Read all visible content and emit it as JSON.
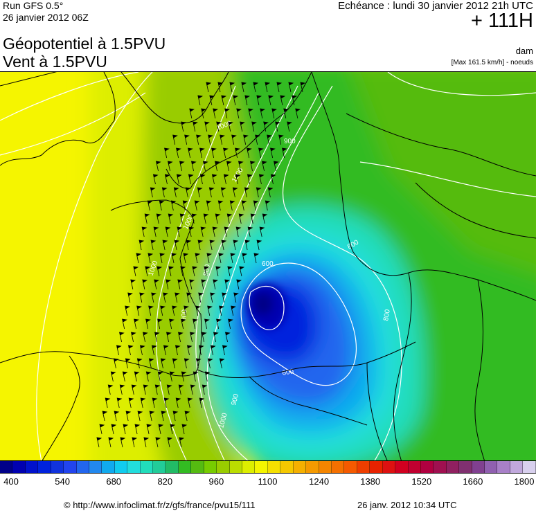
{
  "header": {
    "run_title": "Run GFS 0.5°",
    "run_date": "26 janvier 2012 06Z",
    "title_line1": "Géopotentiel à 1.5PVU",
    "title_line2": "Vent à 1.5PVU",
    "valid_time": "Echéance : lundi 30 janvier 2012 21h UTC",
    "lead_time": "+ 111H",
    "unit": "dam",
    "max_wind": "[Max 161.5 km/h] - noeuds"
  },
  "map": {
    "contour_labels": [
      "1000",
      "900",
      "1000",
      "1000",
      "1000",
      "800",
      "900",
      "600",
      "800",
      "800",
      "600",
      "900",
      "1000"
    ],
    "field_center": "deep low over the Bay of Biscay / western France",
    "colors": {
      "yellow": "#f5f500",
      "green": "#33bb22",
      "cyan": "#22dddd",
      "blue": "#1133dd",
      "navy": "#000088"
    }
  },
  "legend": {
    "colors": [
      "#000088",
      "#0000b0",
      "#0011cc",
      "#0022dd",
      "#1133dd",
      "#2244ee",
      "#2266ee",
      "#2288ee",
      "#11aaee",
      "#11ccee",
      "#22dddd",
      "#22ddbb",
      "#22cc99",
      "#22bb66",
      "#33bb22",
      "#55bb11",
      "#77cc00",
      "#99cc00",
      "#bbdd00",
      "#ddee00",
      "#f5f500",
      "#f5e000",
      "#f5c800",
      "#f5b000",
      "#f59a00",
      "#f58500",
      "#f57000",
      "#f55a00",
      "#ee3e00",
      "#e82200",
      "#dd1111",
      "#d00020",
      "#c00030",
      "#b00040",
      "#a01050",
      "#902060",
      "#803070",
      "#804090",
      "#9060b0",
      "#a880c8",
      "#c0a8dc",
      "#d8d0ee"
    ],
    "ticks": [
      "400",
      "540",
      "680",
      "820",
      "960",
      "1100",
      "1240",
      "1380",
      "1520",
      "1660",
      "1800"
    ]
  },
  "footer": {
    "credit": "© http://www.infoclimat.fr/z/gfs/france/pvu15/111",
    "timestamp": "26 janv. 2012 10:34 UTC"
  }
}
